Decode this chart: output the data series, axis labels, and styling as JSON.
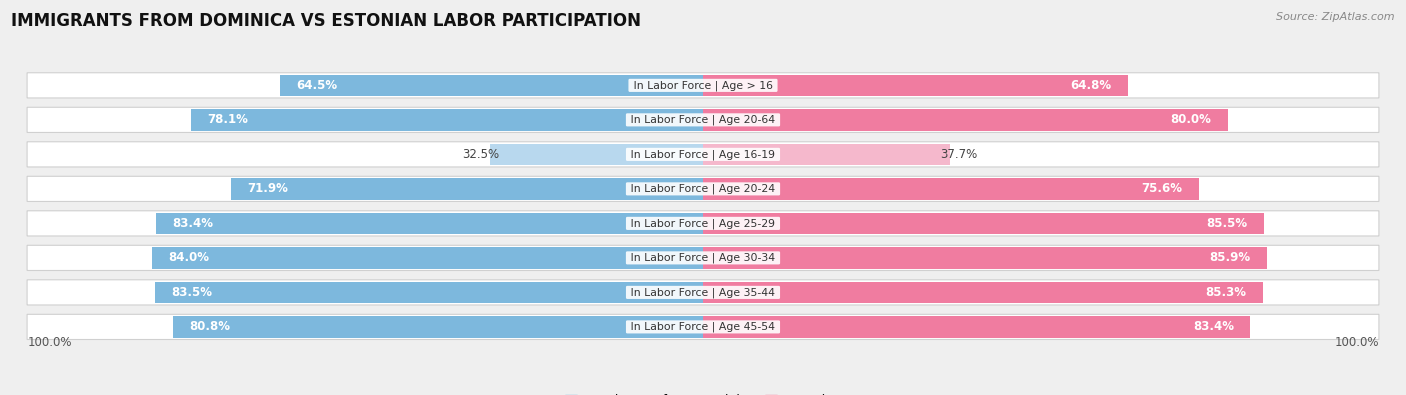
{
  "title": "IMMIGRANTS FROM DOMINICA VS ESTONIAN LABOR PARTICIPATION",
  "source": "Source: ZipAtlas.com",
  "categories": [
    "In Labor Force | Age > 16",
    "In Labor Force | Age 20-64",
    "In Labor Force | Age 16-19",
    "In Labor Force | Age 20-24",
    "In Labor Force | Age 25-29",
    "In Labor Force | Age 30-34",
    "In Labor Force | Age 35-44",
    "In Labor Force | Age 45-54"
  ],
  "dominica_values": [
    64.5,
    78.1,
    32.5,
    71.9,
    83.4,
    84.0,
    83.5,
    80.8
  ],
  "estonian_values": [
    64.8,
    80.0,
    37.7,
    75.6,
    85.5,
    85.9,
    85.3,
    83.4
  ],
  "dominica_color": "#7db8dd",
  "dominica_color_light": "#b8d8ee",
  "estonian_color": "#f07ca0",
  "estonian_color_light": "#f5b8cc",
  "bg_color": "#efefef",
  "row_bg_light": "#f8f8f8",
  "row_bg_dark": "#e8e8e8",
  "max_val": 100.0,
  "label_fontsize": 8.5,
  "title_fontsize": 12,
  "legend_fontsize": 9,
  "bar_height": 0.62
}
